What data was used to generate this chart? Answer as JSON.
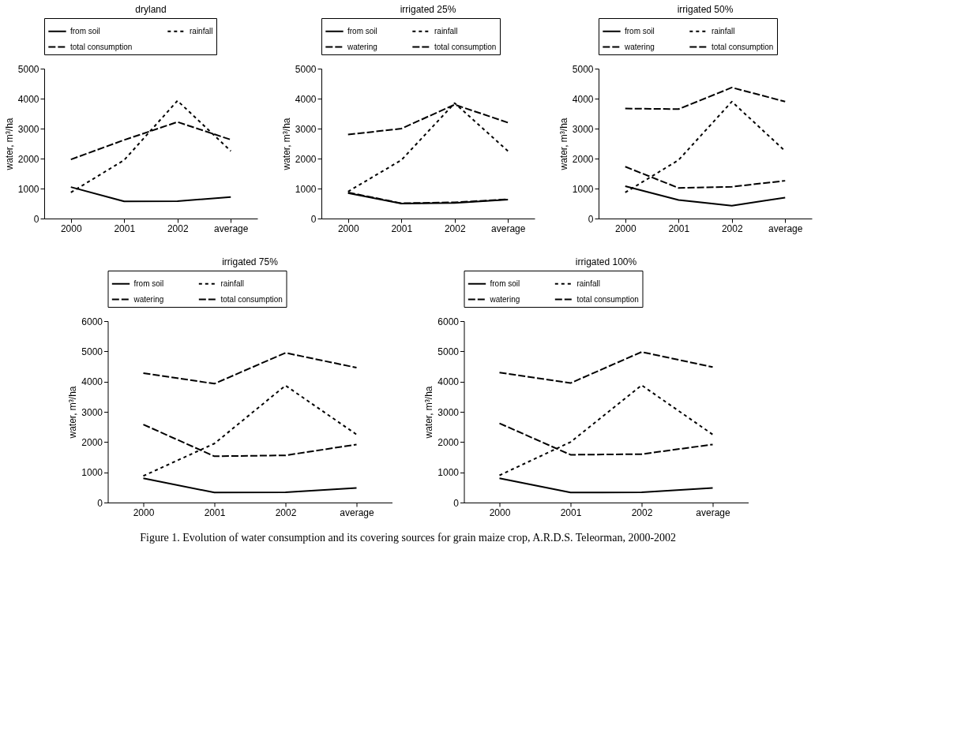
{
  "chart_data": [
    {
      "type": "line",
      "title": "dryland",
      "ylabel": "water, m³/ha",
      "categories": [
        "2000",
        "2001",
        "2002",
        "average"
      ],
      "ylim": [
        0,
        5000
      ],
      "yticks": [
        0,
        1000,
        2000,
        3000,
        4000,
        5000
      ],
      "grid": false,
      "legend": "top",
      "marker": "none",
      "series": [
        {
          "name": "from soil",
          "color": "#000000",
          "line_style": "solid",
          "values": [
            1050,
            570,
            580,
            720
          ]
        },
        {
          "name": "rainfall",
          "color": "#000000",
          "line_style": "dotted",
          "values": [
            870,
            1950,
            3930,
            2250
          ]
        },
        {
          "name": "total consumption",
          "color": "#000000",
          "line_style": "dashed",
          "values": [
            1970,
            2620,
            3220,
            2630
          ]
        }
      ]
    },
    {
      "type": "line",
      "title": "irrigated 25%",
      "ylabel": "water, m³/ha",
      "categories": [
        "2000",
        "2001",
        "2002",
        "average"
      ],
      "ylim": [
        0,
        5000
      ],
      "yticks": [
        0,
        1000,
        2000,
        3000,
        4000,
        5000
      ],
      "grid": false,
      "legend": "top",
      "marker": "none",
      "series": [
        {
          "name": "from soil",
          "color": "#000000",
          "line_style": "solid",
          "values": [
            850,
            500,
            520,
            630
          ]
        },
        {
          "name": "rainfall",
          "color": "#000000",
          "line_style": "dotted",
          "values": [
            900,
            1950,
            3850,
            2250
          ]
        },
        {
          "name": "watering",
          "color": "#000000",
          "line_style": "dashed",
          "values": [
            870,
            510,
            540,
            640
          ]
        },
        {
          "name": "total consumption",
          "color": "#000000",
          "line_style": "dashed",
          "values": [
            2800,
            3000,
            3800,
            3200
          ]
        }
      ]
    },
    {
      "type": "line",
      "title": "irrigated 50%",
      "ylabel": "water, m³/ha",
      "categories": [
        "2000",
        "2001",
        "2002",
        "average"
      ],
      "ylim": [
        0,
        5000
      ],
      "yticks": [
        0,
        1000,
        2000,
        3000,
        4000,
        5000
      ],
      "grid": false,
      "legend": "top",
      "marker": "none",
      "series": [
        {
          "name": "from soil",
          "color": "#000000",
          "line_style": "solid",
          "values": [
            1080,
            620,
            430,
            700
          ]
        },
        {
          "name": "rainfall",
          "color": "#000000",
          "line_style": "dotted",
          "values": [
            870,
            1950,
            3900,
            2250
          ]
        },
        {
          "name": "watering",
          "color": "#000000",
          "line_style": "dashed",
          "values": [
            1730,
            1020,
            1060,
            1260
          ]
        },
        {
          "name": "total consumption",
          "color": "#000000",
          "line_style": "dashed",
          "values": [
            3670,
            3650,
            4370,
            3900
          ]
        }
      ]
    },
    {
      "type": "line",
      "title": "irrigated 75%",
      "ylabel": "water, m³/ha",
      "categories": [
        "2000",
        "2001",
        "2002",
        "average"
      ],
      "ylim": [
        0,
        6000
      ],
      "yticks": [
        0,
        1000,
        2000,
        3000,
        4000,
        5000,
        6000
      ],
      "grid": false,
      "legend": "top",
      "marker": "none",
      "series": [
        {
          "name": "from soil",
          "color": "#000000",
          "line_style": "solid",
          "values": [
            800,
            330,
            340,
            480
          ]
        },
        {
          "name": "rainfall",
          "color": "#000000",
          "line_style": "dotted",
          "values": [
            880,
            1950,
            3870,
            2250
          ]
        },
        {
          "name": "watering",
          "color": "#000000",
          "line_style": "dashed",
          "values": [
            2580,
            1530,
            1560,
            1920
          ]
        },
        {
          "name": "total consumption",
          "color": "#000000",
          "line_style": "dashed",
          "values": [
            4280,
            3930,
            4950,
            4460
          ]
        }
      ]
    },
    {
      "type": "line",
      "title": "irrigated 100%",
      "ylabel": "water, m³/ha",
      "categories": [
        "2000",
        "2001",
        "2002",
        "average"
      ],
      "ylim": [
        0,
        6000
      ],
      "yticks": [
        0,
        1000,
        2000,
        3000,
        4000,
        5000,
        6000
      ],
      "grid": false,
      "legend": "top",
      "marker": "none",
      "annotations": [
        "Figure 1. Evolution of water consumption and its covering sources for grain maize crop, A.R.D.S. Teleorman, 2000-2002"
      ],
      "series": [
        {
          "name": "from soil",
          "color": "#000000",
          "line_style": "solid",
          "values": [
            800,
            330,
            340,
            480
          ]
        },
        {
          "name": "rainfall",
          "color": "#000000",
          "line_style": "dotted",
          "values": [
            900,
            2000,
            3880,
            2250
          ]
        },
        {
          "name": "watering",
          "color": "#000000",
          "line_style": "dashed",
          "values": [
            2620,
            1580,
            1600,
            1920
          ]
        },
        {
          "name": "total consumption",
          "color": "#000000",
          "line_style": "dashed",
          "values": [
            4300,
            3950,
            4980,
            4480
          ]
        }
      ]
    }
  ]
}
